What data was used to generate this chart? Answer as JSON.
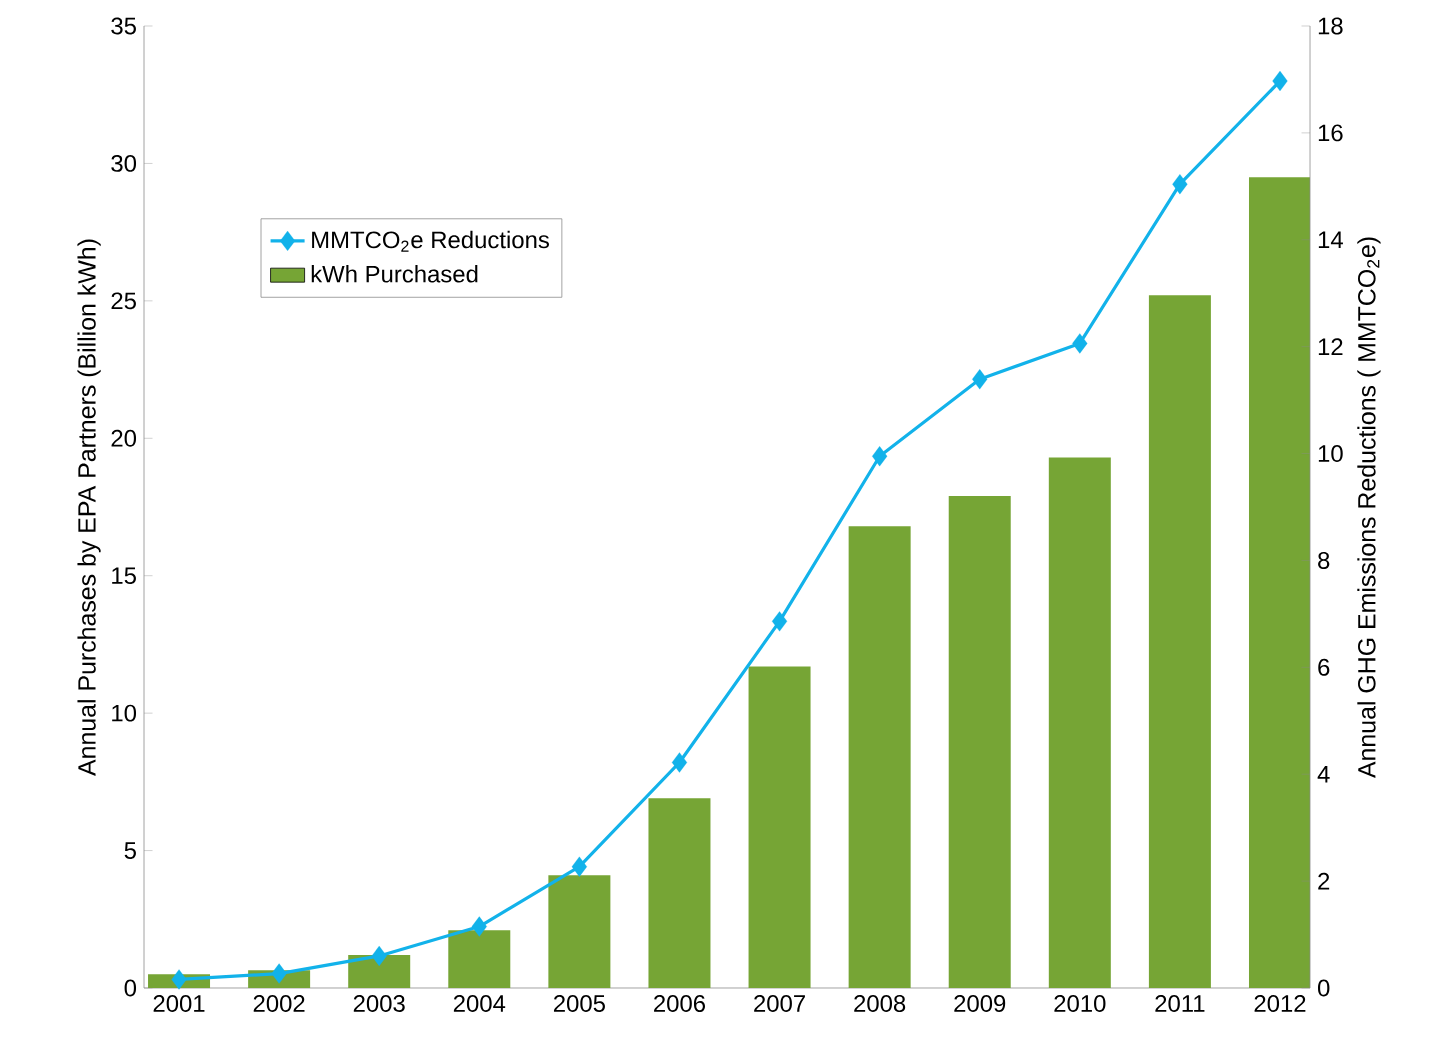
{
  "chart_data": {
    "type": "bar",
    "categories": [
      "2001",
      "2002",
      "2003",
      "2004",
      "2005",
      "2006",
      "2007",
      "2008",
      "2009",
      "2010",
      "2011",
      "2012"
    ],
    "series": [
      {
        "name": "MMTCO$_{2}$e Reductions",
        "type": "line",
        "axis": "y2",
        "color": "#12b2ea",
        "marker": "diamond",
        "values": [
          0.16,
          0.27,
          0.6,
          1.15,
          2.27,
          4.22,
          6.86,
          9.95,
          11.39,
          12.06,
          15.04,
          16.97
        ]
      },
      {
        "name": "kWh Purchased",
        "color": "#76a535",
        "values": [
          0.5,
          0.65,
          1.2,
          2.1,
          4.1,
          6.9,
          11.7,
          16.8,
          17.9,
          19.3,
          25.2,
          29.5
        ]
      }
    ],
    "ylabel": "Annual Purchases by EPA Partners (Billion kWh)",
    "y2label": "Annual GHG Emissions Reductions  ( MMTCO$_{2}$e)",
    "ylim": [
      0,
      35
    ],
    "yticks": [
      0,
      5,
      10,
      15,
      20,
      25,
      30,
      35
    ],
    "y2lim": [
      0,
      18
    ],
    "y2ticks": [
      0,
      2,
      4,
      6,
      8,
      10,
      12,
      14,
      16,
      18
    ],
    "legend": "top left"
  }
}
